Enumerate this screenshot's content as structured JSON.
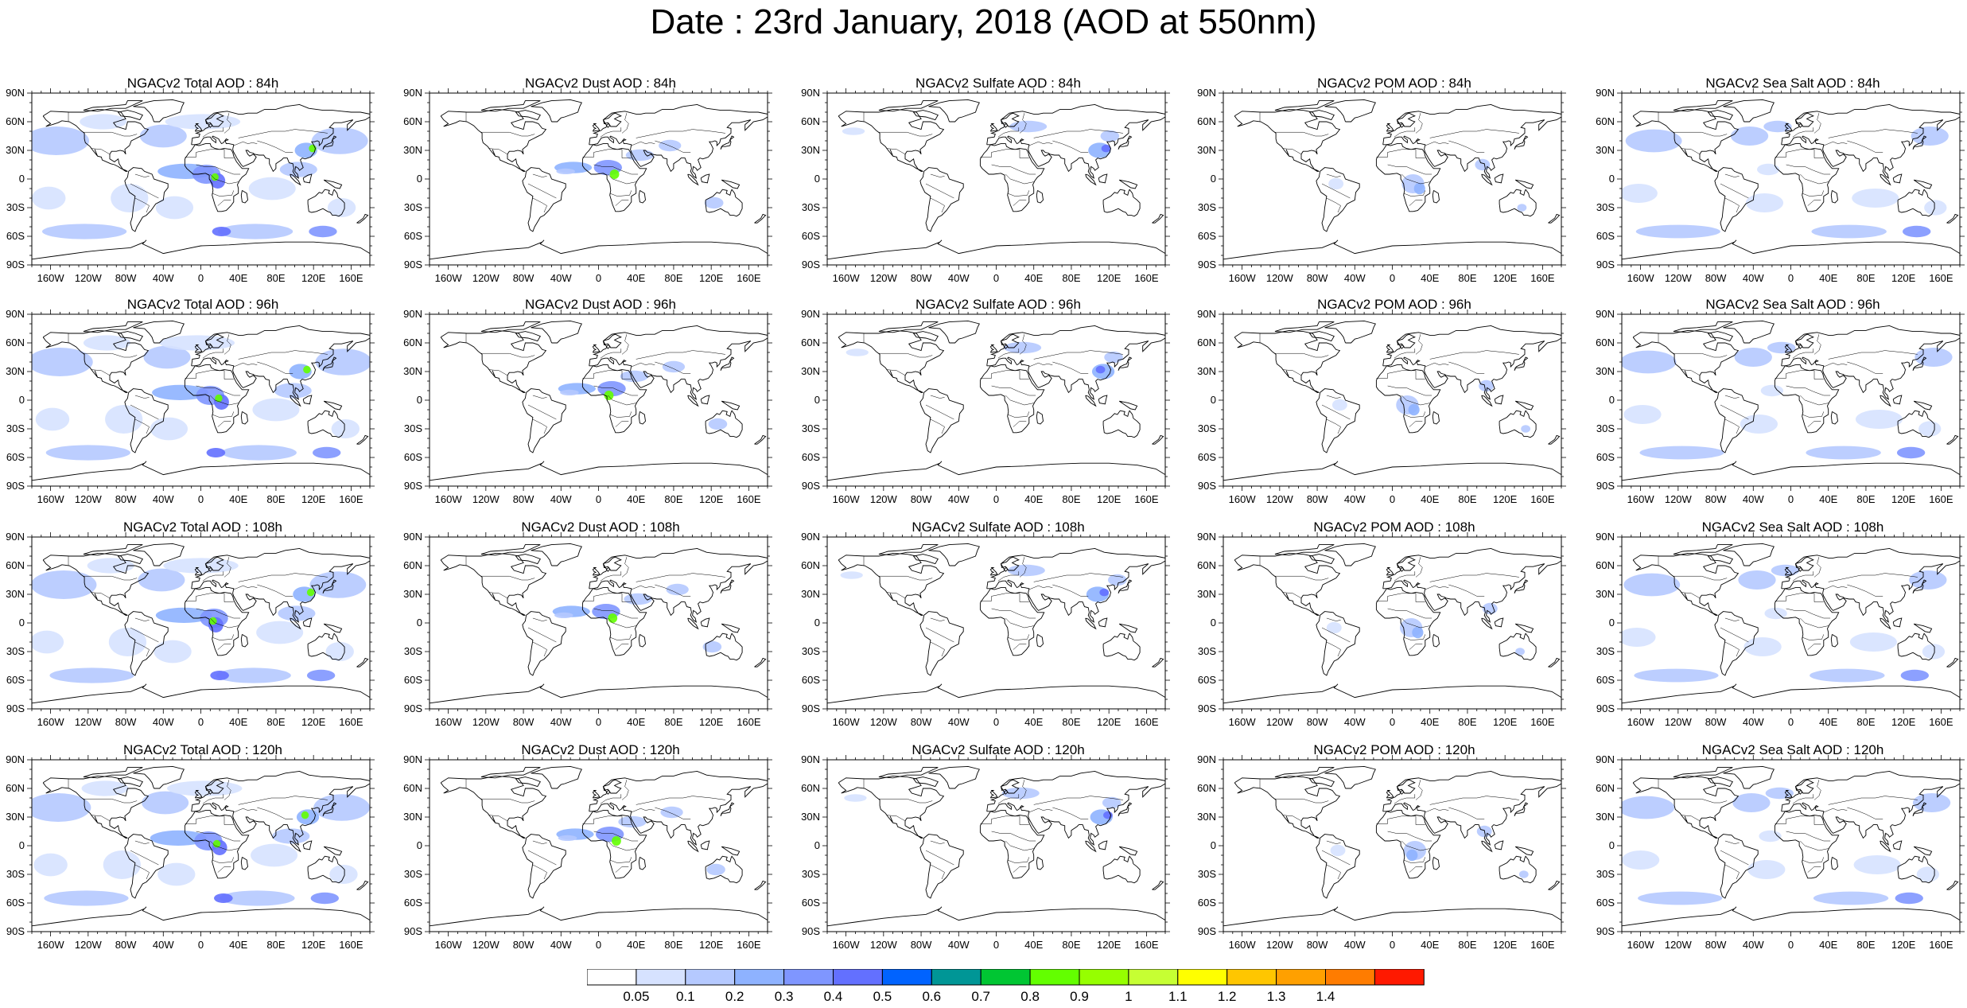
{
  "title": "Date : 23rd January, 2018 (AOD at 550nm)",
  "lat_ticks": [
    "90N",
    "60N",
    "30N",
    "0",
    "30S",
    "60S",
    "90S"
  ],
  "lon_ticks": [
    "160W",
    "120W",
    "80W",
    "40W",
    "0",
    "40E",
    "80E",
    "120E",
    "160E"
  ],
  "colorbar": {
    "labels": [
      "0.05",
      "0.1",
      "0.2",
      "0.3",
      "0.4",
      "0.5",
      "0.6",
      "0.7",
      "0.8",
      "0.9",
      "1",
      "1.1",
      "1.2",
      "1.3",
      "1.4"
    ],
    "colors": [
      "#ffffff",
      "#d6e2ff",
      "#b5c9ff",
      "#8eb2ff",
      "#7f96ff",
      "#6370ff",
      "#0063ff",
      "#009696",
      "#00c633",
      "#63ff00",
      "#96ff00",
      "#c6ff33",
      "#ffff00",
      "#ffc600",
      "#ffa000",
      "#ff7c00",
      "#ff1900"
    ]
  },
  "rows": [
    {
      "forecast": "84h",
      "titles": [
        "NGACv2 Total AOD : 84h",
        "NGACv2 Dust AOD : 84h",
        "NGACv2 Sulfate AOD : 84h",
        "NGACv2 POM AOD : 84h",
        "NGACv2 Sea Salt AOD : 84h"
      ]
    },
    {
      "forecast": "96h",
      "titles": [
        "NGACv2 Total AOD : 96h",
        "NGACv2 Dust AOD : 96h",
        "NGACv2 Sulfate AOD : 96h",
        "NGACv2 POM AOD : 96h",
        "NGACv2 Sea Salt AOD : 96h"
      ]
    },
    {
      "forecast": "108h",
      "titles": [
        "NGACv2 Total AOD : 108h",
        "NGACv2 Dust AOD : 108h",
        "NGACv2 Sulfate AOD : 108h",
        "NGACv2 POM AOD : 108h",
        "NGACv2 Sea Salt AOD : 108h"
      ]
    },
    {
      "forecast": "120h",
      "titles": [
        "NGACv2 Total AOD : 120h",
        "NGACv2 Dust AOD : 120h",
        "NGACv2 Sulfate AOD : 120h",
        "NGACv2 POM AOD : 120h",
        "NGACv2 Sea Salt  AOD : 120h"
      ]
    }
  ],
  "species": [
    "Total",
    "Dust",
    "Sulfate",
    "POM",
    "Sea Salt"
  ]
}
